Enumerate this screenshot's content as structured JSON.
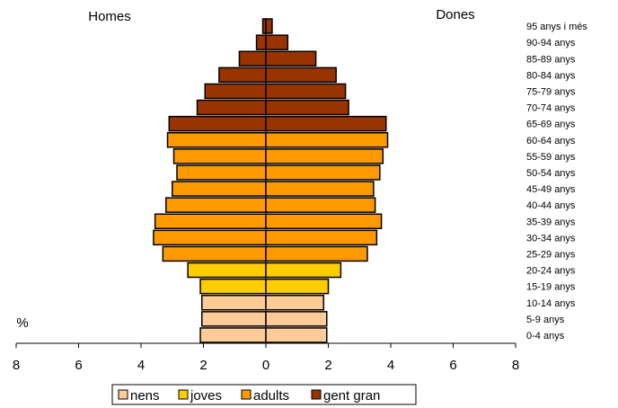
{
  "chart_data": {
    "type": "bar",
    "title_left": "Homes",
    "title_right": "Dones",
    "unit_label": "%",
    "categories": [
      "0-4 anys",
      "5-9 anys",
      "10-14 anys",
      "15-19 anys",
      "20-24 anys",
      "25-29 anys",
      "30-34 anys",
      "35-39 anys",
      "40-44 anys",
      "45-49 anys",
      "50-54 anys",
      "55-59 anys",
      "60-64 anys",
      "65-69 anys",
      "70-74 anys",
      "75-79 anys",
      "80-84 anys",
      "85-89 anys",
      "90-94 anys",
      "95 anys i més"
    ],
    "groups": [
      "nens",
      "nens",
      "nens",
      "joves",
      "joves",
      "adults",
      "adults",
      "adults",
      "adults",
      "adults",
      "adults",
      "adults",
      "adults",
      "gent gran",
      "gent gran",
      "gent gran",
      "gent gran",
      "gent gran",
      "gent gran",
      "gent gran"
    ],
    "series": [
      {
        "name": "Homes",
        "values": [
          2.1,
          2.05,
          2.05,
          2.1,
          2.5,
          3.3,
          3.6,
          3.55,
          3.2,
          3.0,
          2.85,
          2.95,
          3.15,
          3.1,
          2.2,
          1.95,
          1.5,
          0.85,
          0.3,
          0.1
        ]
      },
      {
        "name": "Dones",
        "values": [
          1.95,
          1.95,
          1.85,
          2.0,
          2.4,
          3.25,
          3.55,
          3.7,
          3.5,
          3.45,
          3.65,
          3.75,
          3.9,
          3.85,
          2.65,
          2.55,
          2.25,
          1.6,
          0.7,
          0.2
        ]
      }
    ],
    "xlim": [
      -8,
      8
    ],
    "ticks": [
      "8",
      "6",
      "4",
      "2",
      "0",
      "2",
      "4",
      "6",
      "8"
    ],
    "tick_values": [
      -8,
      -6,
      -4,
      -2,
      0,
      2,
      4,
      6,
      8
    ],
    "legend": [
      {
        "label": "nens",
        "color": "#FFCC99"
      },
      {
        "label": "joves",
        "color": "#FFCC00"
      },
      {
        "label": "adults",
        "color": "#FF9900"
      },
      {
        "label": "gent gran",
        "color": "#993300"
      }
    ],
    "legend_position": "bottom"
  }
}
